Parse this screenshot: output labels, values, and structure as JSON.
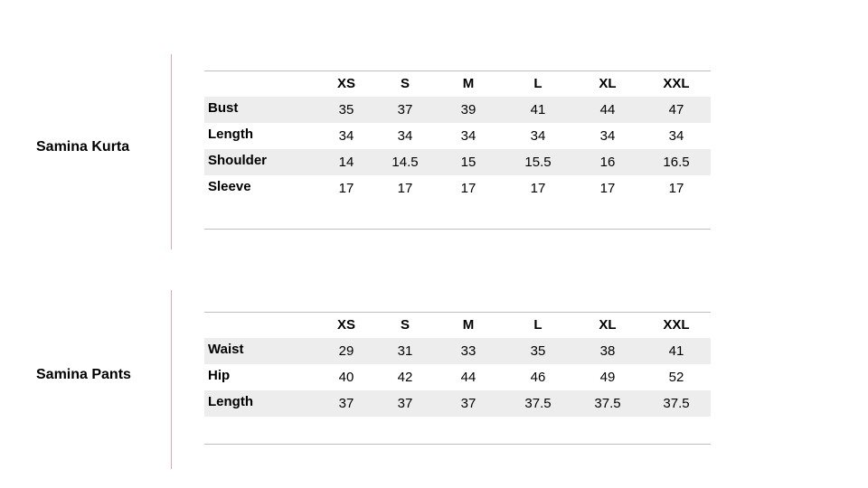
{
  "tables": [
    {
      "title": "Samina Kurta",
      "sizes": [
        "XS",
        "S",
        "M",
        "L",
        "XL",
        "XXL"
      ],
      "rows": [
        {
          "label": "Bust",
          "values": [
            "35",
            "37",
            "39",
            "41",
            "44",
            "47"
          ]
        },
        {
          "label": "Length",
          "values": [
            "34",
            "34",
            "34",
            "34",
            "34",
            "34"
          ]
        },
        {
          "label": "Shoulder",
          "values": [
            "14",
            "14.5",
            "15",
            "15.5",
            "16",
            "16.5"
          ]
        },
        {
          "label": "Sleeve",
          "values": [
            "17",
            "17",
            "17",
            "17",
            "17",
            "17"
          ]
        }
      ]
    },
    {
      "title": "Samina Pants",
      "sizes": [
        "XS",
        "S",
        "M",
        "L",
        "XL",
        "XXL"
      ],
      "rows": [
        {
          "label": "Waist",
          "values": [
            "29",
            "31",
            "33",
            "35",
            "38",
            "41"
          ]
        },
        {
          "label": "Hip",
          "values": [
            "40",
            "42",
            "44",
            "46",
            "49",
            "52"
          ]
        },
        {
          "label": "Length",
          "values": [
            "37",
            "37",
            "37",
            "37.5",
            "37.5",
            "37.5"
          ]
        }
      ]
    }
  ],
  "colors": {
    "divider": "#e8a8a8",
    "row_shade": "#ededed",
    "rule": "#bfbfbf"
  }
}
